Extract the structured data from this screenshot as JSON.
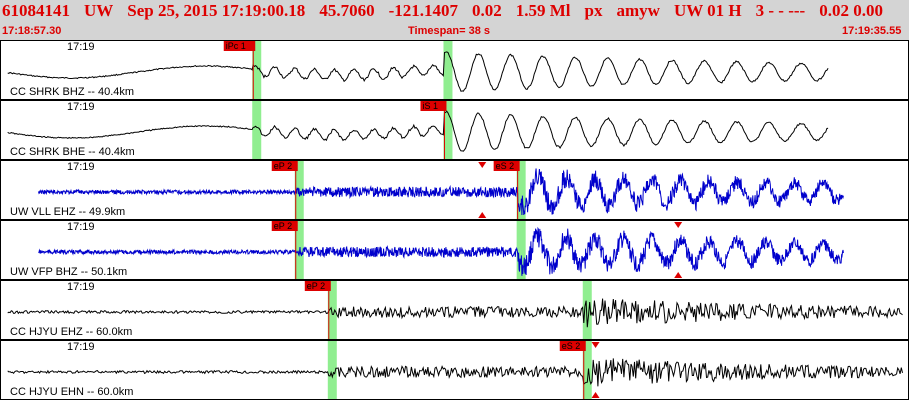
{
  "header": {
    "event_id": "61084141",
    "network": "UW",
    "datetime": "Sep 25, 2015 17:19:00.18",
    "lat": "45.7060",
    "lon": "-121.1407",
    "depth": "0.02",
    "mag": "1.59 Ml",
    "mag_type": "px",
    "analyst": "amyw",
    "source": "UW 01 H",
    "quality": "3 - - ---",
    "extra": "0.02 0.00",
    "start_time": "17:18:57.30",
    "timespan": "Timespan= 38 s",
    "end_time": "17:19:35.55"
  },
  "colors": {
    "header_bg": "#d4d4d4",
    "header_text": "#dd0000",
    "pick_fill": "#dd0000",
    "pick_window": "#90ee90",
    "cc_trace": "#000000",
    "uw_trace": "#0000cc"
  },
  "traces": [
    {
      "time_label": "17:19",
      "channel": "CC SHRK BHZ -- 40.4km",
      "network": "CC",
      "picks": [
        {
          "label": "iPc 1",
          "t": 10.6
        },
        {
          "label": "",
          "t": 18.7
        }
      ],
      "markers": []
    },
    {
      "time_label": "17:19",
      "channel": "CC SHRK BHE -- 40.4km",
      "network": "CC",
      "picks": [
        {
          "label": "",
          "t": 10.6
        },
        {
          "label": "iS 1",
          "t": 18.7
        }
      ],
      "markers": []
    },
    {
      "time_label": "17:19",
      "channel": "UW VLL EHZ -- 49.9km",
      "network": "UW",
      "picks": [
        {
          "label": "eP 2",
          "t": 12.4
        },
        {
          "label": "eS 2",
          "t": 21.8
        }
      ],
      "markers": [
        {
          "t": 20.3
        }
      ]
    },
    {
      "time_label": "17:19",
      "channel": "UW VFP BHZ -- 50.1km",
      "network": "UW",
      "picks": [
        {
          "label": "eP 2",
          "t": 12.4
        },
        {
          "label": "",
          "t": 21.8
        }
      ],
      "markers": [
        {
          "t": 28.6
        }
      ]
    },
    {
      "time_label": "17:19",
      "channel": "CC HJYU EHZ -- 60.0km",
      "network": "CC",
      "picks": [
        {
          "label": "eP 2",
          "t": 13.8
        },
        {
          "label": "",
          "t": 24.6
        }
      ],
      "markers": []
    },
    {
      "time_label": "17:19",
      "channel": "CC HJYU EHN -- 60.0km",
      "network": "CC",
      "picks": [
        {
          "label": "",
          "t": 13.8
        },
        {
          "label": "eS 2",
          "t": 24.6
        }
      ],
      "markers": [
        {
          "t": 25.1
        }
      ]
    }
  ]
}
